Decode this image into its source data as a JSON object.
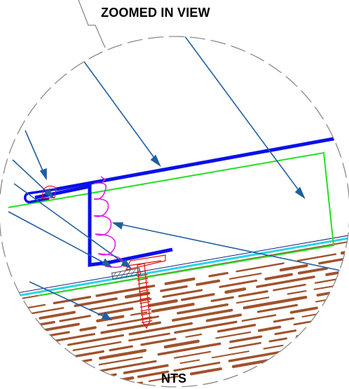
{
  "title": "ZOOMED IN VIEW",
  "scale_note": "NTS",
  "colors": {
    "detail_circle": "#8a8a8a",
    "leaders": "#1f5f9f",
    "flashing": "#0a10e8",
    "membrane": "#22e022",
    "underlayment": "#29d6e6",
    "sheathing_wood": "#a0522d",
    "sealant": "#e020e0",
    "fastener": "#e01010",
    "tape": "#7a7a7a"
  },
  "icons": [
    "arrowhead-icon",
    "screw-icon",
    "sealant-bead-icon",
    "hem-fold-icon"
  ]
}
